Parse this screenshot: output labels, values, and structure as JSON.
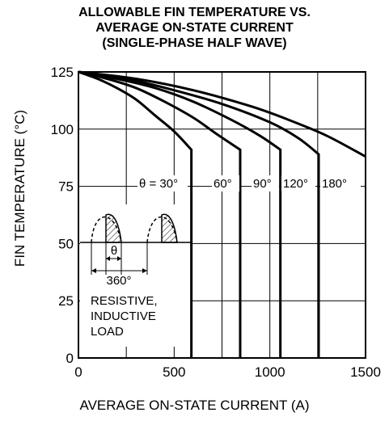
{
  "chart_data": {
    "type": "line",
    "title_lines": [
      "ALLOWABLE FIN TEMPERATURE VS.",
      "AVERAGE ON-STATE CURRENT",
      "(SINGLE-PHASE HALF WAVE)"
    ],
    "xlabel": "AVERAGE ON-STATE CURRENT  (A)",
    "ylabel": "FIN TEMPERATURE  (°C)",
    "xlim": [
      0,
      1500
    ],
    "ylim": [
      0,
      125
    ],
    "xticks": [
      0,
      500,
      1000,
      1500
    ],
    "yticks": [
      0,
      25,
      50,
      75,
      100,
      125
    ],
    "grid": true,
    "series": [
      {
        "name": "θ = 30°",
        "points": [
          [
            0,
            125
          ],
          [
            100,
            122
          ],
          [
            200,
            118
          ],
          [
            300,
            113
          ],
          [
            400,
            106
          ],
          [
            500,
            99
          ],
          [
            590,
            91
          ]
        ],
        "drop_at": 590
      },
      {
        "name": "60°",
        "points": [
          [
            0,
            125
          ],
          [
            150,
            122
          ],
          [
            300,
            118
          ],
          [
            450,
            112
          ],
          [
            600,
            105
          ],
          [
            720,
            98
          ],
          [
            845,
            91
          ]
        ],
        "drop_at": 845
      },
      {
        "name": "90°",
        "points": [
          [
            0,
            125
          ],
          [
            200,
            122
          ],
          [
            400,
            118
          ],
          [
            600,
            112
          ],
          [
            800,
            104
          ],
          [
            950,
            97
          ],
          [
            1055,
            91
          ]
        ],
        "drop_at": 1055
      },
      {
        "name": "120°",
        "points": [
          [
            0,
            125
          ],
          [
            250,
            122
          ],
          [
            500,
            117
          ],
          [
            750,
            111
          ],
          [
            1000,
            103
          ],
          [
            1150,
            96
          ],
          [
            1255,
            89
          ]
        ],
        "drop_at": 1255
      },
      {
        "name": "180°",
        "points": [
          [
            0,
            125
          ],
          [
            300,
            122
          ],
          [
            600,
            117
          ],
          [
            900,
            110
          ],
          [
            1100,
            104
          ],
          [
            1300,
            97
          ],
          [
            1500,
            88
          ]
        ],
        "drop_at": null
      }
    ],
    "inset": {
      "theta_label": "θ",
      "period_label": "360°",
      "load_label": [
        "RESISTIVE,",
        "INDUCTIVE",
        "LOAD"
      ]
    }
  }
}
